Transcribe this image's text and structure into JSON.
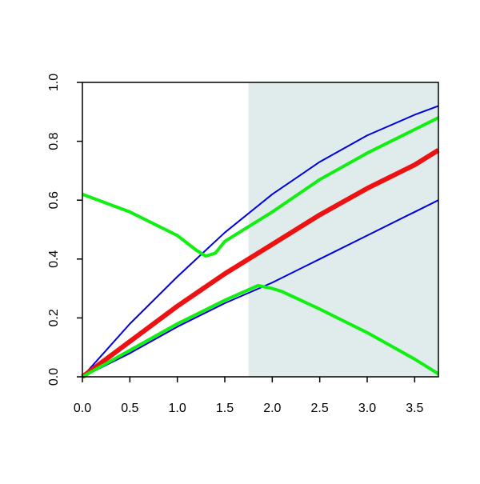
{
  "chart_data": {
    "type": "line",
    "xlim": [
      0,
      3.75
    ],
    "ylim": [
      0,
      1
    ],
    "xticks": [
      {
        "value": 0,
        "label": "0.0"
      },
      {
        "value": 0.5,
        "label": "0.5"
      },
      {
        "value": 1,
        "label": "1.0"
      },
      {
        "value": 1.5,
        "label": "1.5"
      },
      {
        "value": 2,
        "label": "2.0"
      },
      {
        "value": 2.5,
        "label": "2.5"
      },
      {
        "value": 3,
        "label": "3.0"
      },
      {
        "value": 3.5,
        "label": "3.5"
      }
    ],
    "yticks": [
      {
        "value": 0,
        "label": "0.0"
      },
      {
        "value": 0.2,
        "label": "0.2"
      },
      {
        "value": 0.4,
        "label": "0.4"
      },
      {
        "value": 0.6,
        "label": "0.6"
      },
      {
        "value": 0.8,
        "label": "0.8"
      },
      {
        "value": 1,
        "label": "1.0"
      }
    ],
    "shade": {
      "xrange": [
        1.75,
        3.75
      ],
      "color": "#e0ecec"
    },
    "series": [
      {
        "color": "#0000dd",
        "width": 2,
        "x": [
          0,
          0.5,
          1,
          1.5,
          2,
          2.5,
          3,
          3.5,
          3.75
        ],
        "values": [
          0,
          0.18,
          0.34,
          0.49,
          0.62,
          0.73,
          0.82,
          0.89,
          0.92
        ]
      },
      {
        "color": "#0000dd",
        "width": 2,
        "x": [
          0,
          0.5,
          1,
          1.5,
          2,
          2.5,
          3,
          3.5,
          3.75
        ],
        "values": [
          0,
          0.08,
          0.17,
          0.25,
          0.32,
          0.4,
          0.48,
          0.56,
          0.6
        ]
      },
      {
        "color": "#ee1111",
        "width": 6,
        "x": [
          0,
          0.5,
          1,
          1.5,
          2,
          2.5,
          3,
          3.5,
          3.75
        ],
        "values": [
          0,
          0.12,
          0.24,
          0.35,
          0.45,
          0.55,
          0.64,
          0.72,
          0.77
        ]
      },
      {
        "color": "#11ee11",
        "width": 4,
        "x": [
          0,
          0.5,
          1,
          1.2,
          1.3,
          1.4,
          1.5,
          2,
          2.5,
          3,
          3.5,
          3.75
        ],
        "values": [
          0.62,
          0.56,
          0.48,
          0.43,
          0.41,
          0.42,
          0.46,
          0.56,
          0.67,
          0.76,
          0.84,
          0.88
        ]
      },
      {
        "color": "#11ee11",
        "width": 4,
        "x": [
          0,
          0.5,
          1,
          1.5,
          1.85,
          2,
          2.1,
          2.5,
          3,
          3.5,
          3.75
        ],
        "values": [
          0,
          0.09,
          0.18,
          0.26,
          0.31,
          0.3,
          0.29,
          0.23,
          0.15,
          0.06,
          0.01
        ]
      }
    ]
  }
}
